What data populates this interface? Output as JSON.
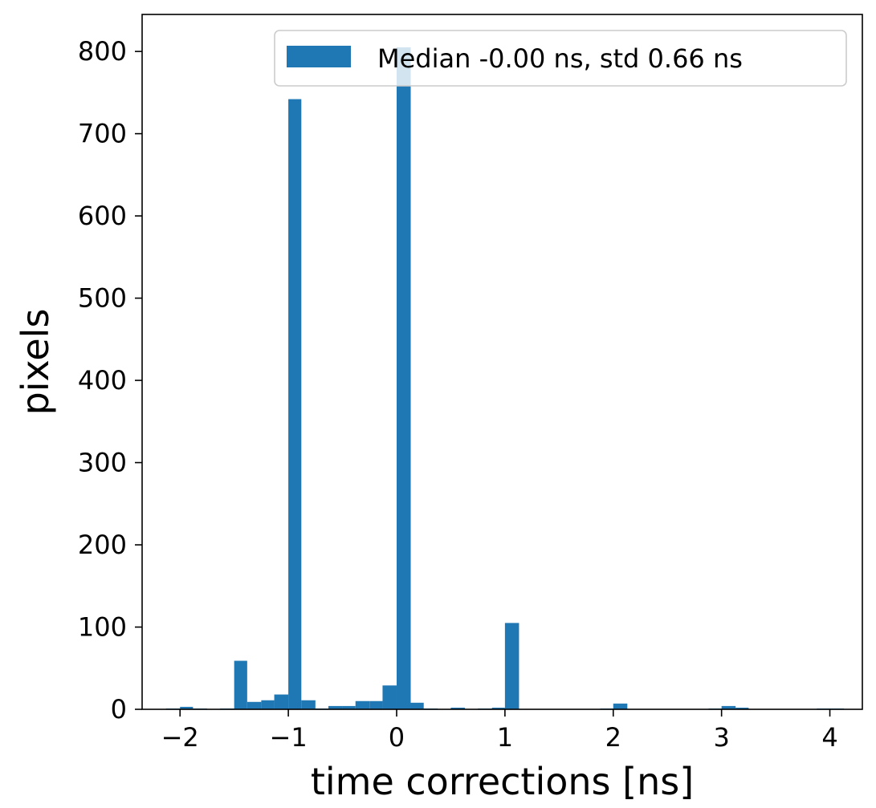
{
  "chart_data": {
    "type": "bar",
    "title": "",
    "xlabel": "time corrections [ns]",
    "ylabel": "pixels",
    "xlim": [
      -2.35,
      4.3
    ],
    "ylim": [
      0,
      845
    ],
    "xticks": [
      -2,
      -1,
      0,
      1,
      2,
      3,
      4
    ],
    "xtick_labels": [
      "−2",
      "−1",
      "0",
      "1",
      "2",
      "3",
      "4"
    ],
    "yticks": [
      0,
      100,
      200,
      300,
      400,
      500,
      600,
      700,
      800
    ],
    "ytick_labels": [
      "0",
      "100",
      "200",
      "300",
      "400",
      "500",
      "600",
      "700",
      "800"
    ],
    "bar_color": "#1f77b4",
    "grid": false,
    "legend_position": "top-right",
    "series": [
      {
        "name": "Median -0.00 ns, std 0.66 ns",
        "bins": [
          {
            "x0": -2.13,
            "x1": -2.0,
            "count": 1
          },
          {
            "x0": -2.0,
            "x1": -1.88,
            "count": 3
          },
          {
            "x0": -1.88,
            "x1": -1.75,
            "count": 1
          },
          {
            "x0": -1.63,
            "x1": -1.5,
            "count": 1
          },
          {
            "x0": -1.5,
            "x1": -1.38,
            "count": 59
          },
          {
            "x0": -1.38,
            "x1": -1.25,
            "count": 9
          },
          {
            "x0": -1.25,
            "x1": -1.13,
            "count": 11
          },
          {
            "x0": -1.13,
            "x1": -1.0,
            "count": 18
          },
          {
            "x0": -1.0,
            "x1": -0.88,
            "count": 742
          },
          {
            "x0": -0.88,
            "x1": -0.75,
            "count": 11
          },
          {
            "x0": -0.75,
            "x1": -0.63,
            "count": 1
          },
          {
            "x0": -0.63,
            "x1": -0.5,
            "count": 4
          },
          {
            "x0": -0.5,
            "x1": -0.38,
            "count": 4
          },
          {
            "x0": -0.38,
            "x1": -0.25,
            "count": 10
          },
          {
            "x0": -0.25,
            "x1": -0.13,
            "count": 10
          },
          {
            "x0": -0.13,
            "x1": 0.0,
            "count": 29
          },
          {
            "x0": 0.0,
            "x1": 0.13,
            "count": 805
          },
          {
            "x0": 0.13,
            "x1": 0.25,
            "count": 8
          },
          {
            "x0": 0.25,
            "x1": 0.38,
            "count": 1
          },
          {
            "x0": 0.5,
            "x1": 0.63,
            "count": 2
          },
          {
            "x0": 0.75,
            "x1": 0.88,
            "count": 1
          },
          {
            "x0": 0.88,
            "x1": 1.0,
            "count": 2
          },
          {
            "x0": 1.0,
            "x1": 1.13,
            "count": 105
          },
          {
            "x0": 1.88,
            "x1": 2.0,
            "count": 1
          },
          {
            "x0": 2.0,
            "x1": 2.13,
            "count": 7
          },
          {
            "x0": 2.88,
            "x1": 3.0,
            "count": 1
          },
          {
            "x0": 3.0,
            "x1": 3.13,
            "count": 4
          },
          {
            "x0": 3.13,
            "x1": 3.25,
            "count": 2
          },
          {
            "x0": 3.88,
            "x1": 4.0,
            "count": 1
          },
          {
            "x0": 4.0,
            "x1": 4.13,
            "count": 1
          }
        ]
      }
    ]
  }
}
